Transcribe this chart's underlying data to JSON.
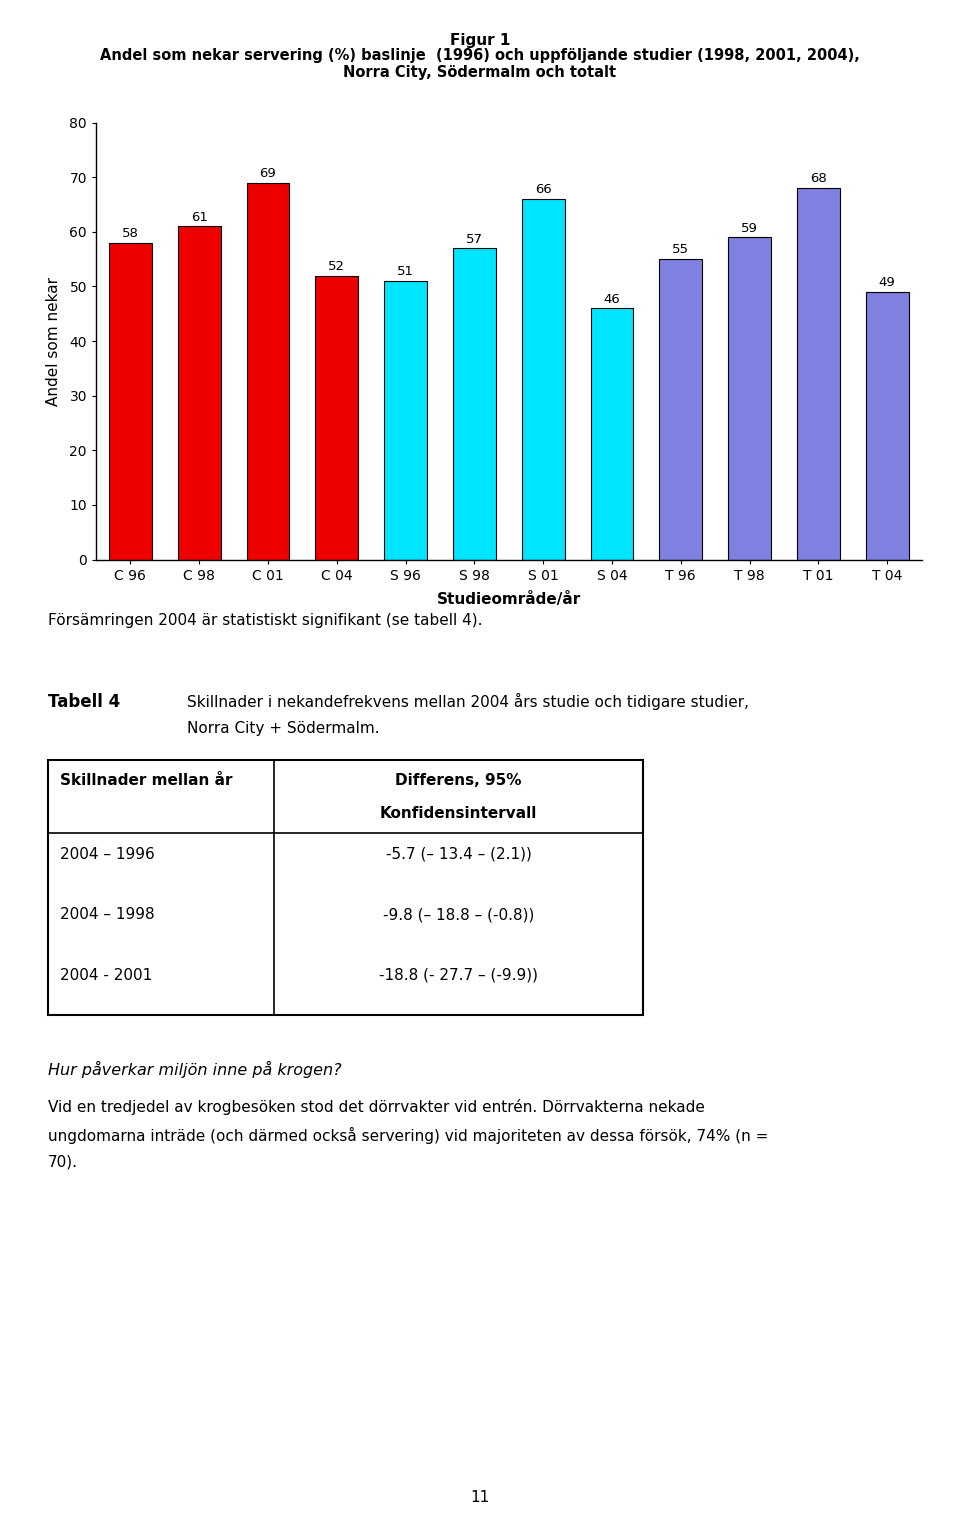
{
  "fig_title_line1": "Figur 1",
  "fig_title_line2": "Andel som nekar servering (%) baslinje  (1996) och uppföljande studier (1998, 2001, 2004),",
  "fig_title_line3": "Norra City, Södermalm och totalt",
  "categories": [
    "C 96",
    "C 98",
    "C 01",
    "C 04",
    "S 96",
    "S 98",
    "S 01",
    "S 04",
    "T 96",
    "T 98",
    "T 01",
    "T 04"
  ],
  "values": [
    58,
    61,
    69,
    52,
    51,
    57,
    66,
    46,
    55,
    59,
    68,
    49
  ],
  "bar_colors": [
    "#ee0000",
    "#ee0000",
    "#ee0000",
    "#ee0000",
    "#00e5ff",
    "#00e5ff",
    "#00e5ff",
    "#00e5ff",
    "#8080e0",
    "#8080e0",
    "#8080e0",
    "#8080e0"
  ],
  "ylabel": "Andel som nekar",
  "xlabel": "Studieområde/år",
  "ylim": [
    0,
    80
  ],
  "yticks": [
    0,
    10,
    20,
    30,
    40,
    50,
    60,
    70,
    80
  ],
  "body_text1": "Försämringen 2004 är statistiskt signifikant (se tabell 4).",
  "tabell4_label": "Tabell 4",
  "tabell4_desc_line1": "Skillnader i nekandefrekvens mellan 2004 års studie och tidigare studier,",
  "tabell4_desc_line2": "Norra City + Södermalm.",
  "table_col1_header": "Skillnader mellan år",
  "table_col2_header_line1": "Differens, 95%",
  "table_col2_header_line2": "Konfidensintervall",
  "table_rows": [
    [
      "2004 – 1996",
      "-5.7 (– 13.4 – (2.1))"
    ],
    [
      "2004 – 1998",
      "-9.8 (– 18.8 – (-0.8))"
    ],
    [
      "2004 - 2001",
      "-18.8 (- 27.7 – (-9.9))"
    ]
  ],
  "italic_heading": "Hur påverkar miljön inne på krogen?",
  "body_text2_line1": "Vid en tredjedel av krogbesöken stod det dörrvakter vid entrén. Dörrvakterna nekade",
  "body_text2_line2": "ungdomarna inträde (och därmed också servering) vid majoriteten av dessa försök, 74% (n =",
  "body_text2_line3": "70).",
  "page_number": "11",
  "background_color": "#ffffff"
}
